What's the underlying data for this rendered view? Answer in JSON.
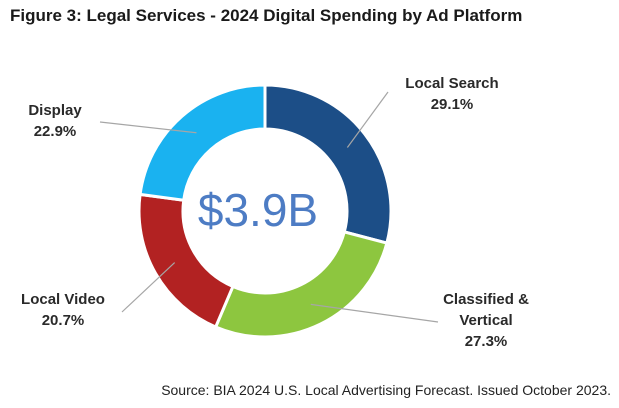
{
  "figure_title": "Figure 3:  Legal Services - 2024 Digital Spending by Ad Platform",
  "source_note": "Source: BIA 2024 U.S. Local Advertising Forecast. Issued October 2023.",
  "chart_data": {
    "type": "pie",
    "variant": "donut",
    "title": "Figure 3:  Legal Services - 2024 Digital Spending by Ad Platform",
    "center_label": "$3.9B",
    "slices": [
      {
        "label_lines": [
          "Local Search"
        ],
        "value": 29.1,
        "display": "29.1%",
        "color": "#1c4e87"
      },
      {
        "label_lines": [
          "Classified &",
          "Vertical"
        ],
        "value": 27.3,
        "display": "27.3%",
        "color": "#8dc63f"
      },
      {
        "label_lines": [
          "Local Video"
        ],
        "value": 20.7,
        "display": "20.7%",
        "color": "#b22222"
      },
      {
        "label_lines": [
          "Display"
        ],
        "value": 22.9,
        "display": "22.9%",
        "color": "#1ab2f0"
      }
    ],
    "start_angle_deg": 0,
    "direction": "clockwise",
    "center_label_color": "#4d7cc4",
    "leader_line_color": "#a6a6a6"
  }
}
